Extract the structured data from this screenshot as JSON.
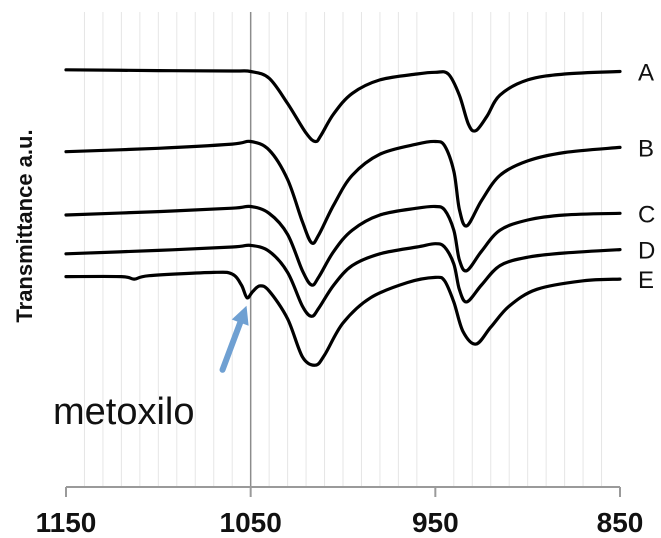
{
  "chart_data": {
    "type": "line",
    "title": "",
    "xlabel": "",
    "ylabel": "Transmittance a.u.",
    "x_reversed": true,
    "xlim": [
      1150,
      850
    ],
    "x_ticks": [
      1150,
      1050,
      950,
      850
    ],
    "x_tick_labels": [
      "1150",
      "1050",
      "950",
      "850"
    ],
    "x_minor_grid_step": 10,
    "grid": true,
    "colors": {
      "line": "#000000",
      "grid": "#e6e6e6",
      "marker_line": "#8c8c8c",
      "arrow": "#6fa0d2"
    },
    "series": [
      {
        "name": "A",
        "x": [
          1150,
          1100,
          1060,
          1050,
          1040,
          1030,
          1020,
          1015,
          1012,
          1005,
          995,
          980,
          960,
          950,
          943,
          937,
          932,
          928,
          922,
          915,
          900,
          880,
          850
        ],
        "y": [
          0.0,
          -0.01,
          -0.015,
          -0.02,
          -0.1,
          -0.4,
          -0.75,
          -0.85,
          -0.78,
          -0.52,
          -0.28,
          -0.12,
          -0.05,
          -0.03,
          -0.05,
          -0.3,
          -0.65,
          -0.72,
          -0.55,
          -0.3,
          -0.12,
          -0.05,
          -0.02
        ]
      },
      {
        "name": "B",
        "x": [
          1150,
          1100,
          1060,
          1050,
          1040,
          1030,
          1022,
          1017,
          1013,
          1005,
          995,
          980,
          960,
          950,
          945,
          940,
          937,
          933,
          925,
          915,
          900,
          880,
          850
        ],
        "y": [
          -0.97,
          -0.93,
          -0.88,
          -0.85,
          -0.95,
          -1.3,
          -1.8,
          -2.05,
          -1.95,
          -1.6,
          -1.25,
          -1.0,
          -0.88,
          -0.85,
          -0.9,
          -1.2,
          -1.65,
          -1.85,
          -1.55,
          -1.25,
          -1.08,
          -0.98,
          -0.92
        ]
      },
      {
        "name": "C",
        "x": [
          1150,
          1100,
          1060,
          1050,
          1040,
          1030,
          1022,
          1017,
          1013,
          1005,
          995,
          980,
          960,
          950,
          945,
          940,
          937,
          933,
          925,
          915,
          900,
          880,
          850
        ],
        "y": [
          -1.72,
          -1.68,
          -1.64,
          -1.62,
          -1.7,
          -1.95,
          -2.38,
          -2.55,
          -2.45,
          -2.15,
          -1.9,
          -1.72,
          -1.64,
          -1.62,
          -1.66,
          -1.9,
          -2.25,
          -2.38,
          -2.15,
          -1.9,
          -1.78,
          -1.72,
          -1.7
        ]
      },
      {
        "name": "D",
        "x": [
          1150,
          1100,
          1060,
          1050,
          1040,
          1030,
          1022,
          1017,
          1013,
          1005,
          995,
          980,
          960,
          950,
          945,
          940,
          937,
          933,
          925,
          915,
          900,
          880,
          850
        ],
        "y": [
          -2.18,
          -2.14,
          -2.1,
          -2.08,
          -2.15,
          -2.4,
          -2.8,
          -2.92,
          -2.82,
          -2.55,
          -2.32,
          -2.18,
          -2.1,
          -2.06,
          -2.1,
          -2.3,
          -2.6,
          -2.75,
          -2.55,
          -2.32,
          -2.22,
          -2.17,
          -2.13
        ]
      },
      {
        "name": "E",
        "x": [
          1150,
          1120,
          1113,
          1105,
          1070,
          1060,
          1055,
          1052,
          1049,
          1045,
          1040,
          1030,
          1022,
          1015,
          1010,
          1000,
          985,
          965,
          950,
          945,
          940,
          935,
          928,
          920,
          910,
          895,
          870,
          850
        ],
        "y": [
          -2.45,
          -2.45,
          -2.48,
          -2.44,
          -2.4,
          -2.42,
          -2.55,
          -2.7,
          -2.63,
          -2.56,
          -2.62,
          -2.95,
          -3.4,
          -3.5,
          -3.38,
          -3.0,
          -2.7,
          -2.52,
          -2.46,
          -2.5,
          -2.75,
          -3.1,
          -3.25,
          -3.05,
          -2.8,
          -2.6,
          -2.5,
          -2.48
        ]
      }
    ],
    "vertical_line_x": 1050,
    "annotation": {
      "text": "metoxilo",
      "points_to_x": 1050
    }
  }
}
